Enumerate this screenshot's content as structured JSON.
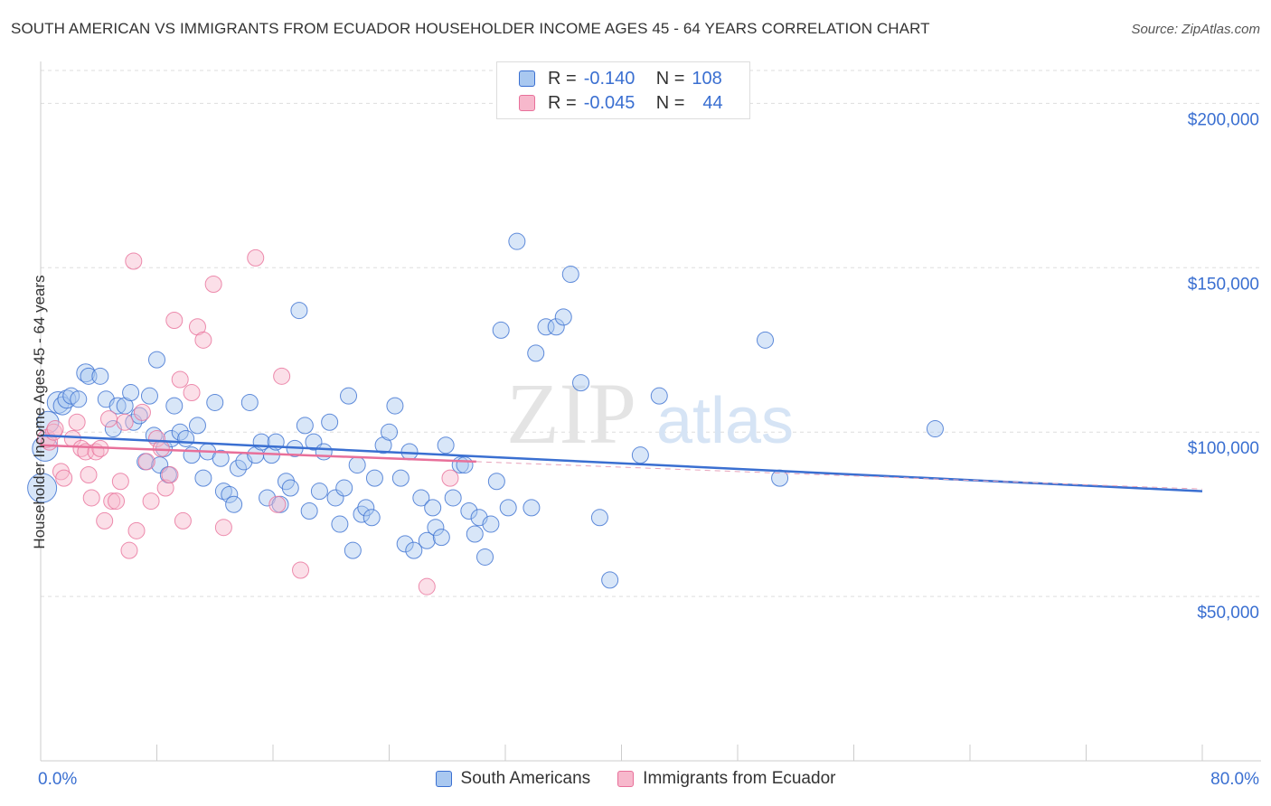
{
  "title": "SOUTH AMERICAN VS IMMIGRANTS FROM ECUADOR HOUSEHOLDER INCOME AGES 45 - 64 YEARS CORRELATION CHART",
  "source": "Source: ZipAtlas.com",
  "watermark": {
    "zip": "ZIP",
    "atlas": "atlas"
  },
  "colors": {
    "blue": "#3a6fd1",
    "blue_fill": "#a9c8f0",
    "pink": "#e8709a",
    "pink_fill": "#f7b8cc",
    "grid": "#dddddd",
    "axis_text": "#3a6fd1"
  },
  "legend": {
    "rows": [
      {
        "r_label": "R =",
        "r_value": "-0.140",
        "n_label": "N =",
        "n_value": "108",
        "color": "blue"
      },
      {
        "r_label": "R =",
        "r_value": "-0.045",
        "n_label": "N =",
        "n_value": "44",
        "color": "pink"
      }
    ]
  },
  "chart_data": {
    "type": "scatter",
    "title": "SOUTH AMERICAN VS IMMIGRANTS FROM ECUADOR HOUSEHOLDER INCOME AGES 45 - 64 YEARS CORRELATION CHART",
    "xlabel": "",
    "ylabel": "Householder Income Ages 45 - 64 years",
    "xlim": [
      0,
      80
    ],
    "ylim": [
      0,
      210000
    ],
    "x_tick_labels": [
      "0.0%",
      "80.0%"
    ],
    "y_ticks": [
      50000,
      100000,
      150000,
      200000
    ],
    "y_tick_labels": [
      "$50,000",
      "$100,000",
      "$150,000",
      "$200,000"
    ],
    "grid": true,
    "legend_position": "bottom",
    "series": [
      {
        "name": "South Americans",
        "color": "blue",
        "trend": {
          "x": [
            0,
            80
          ],
          "y": [
            99000,
            82000
          ]
        },
        "points": [
          [
            0.1,
            83000,
            16
          ],
          [
            0.3,
            95000,
            14
          ],
          [
            0.5,
            103000,
            12
          ],
          [
            1.2,
            109000,
            12
          ],
          [
            1.5,
            108000,
            10
          ],
          [
            1.8,
            110000,
            10
          ],
          [
            2.1,
            111000,
            9
          ],
          [
            2.6,
            110000,
            9
          ],
          [
            3.1,
            118000,
            10
          ],
          [
            3.3,
            117000,
            9
          ],
          [
            4.1,
            117000,
            9
          ],
          [
            4.5,
            110000,
            9
          ],
          [
            5.0,
            101000,
            9
          ],
          [
            5.3,
            108000,
            9
          ],
          [
            5.8,
            108000,
            9
          ],
          [
            6.2,
            112000,
            9
          ],
          [
            6.4,
            103000,
            9
          ],
          [
            6.8,
            105000,
            9
          ],
          [
            7.2,
            91000,
            9
          ],
          [
            7.5,
            111000,
            9
          ],
          [
            7.8,
            99000,
            9
          ],
          [
            8.0,
            122000,
            9
          ],
          [
            8.2,
            90000,
            9
          ],
          [
            8.5,
            95000,
            9
          ],
          [
            8.8,
            87000,
            9
          ],
          [
            9.0,
            98000,
            9
          ],
          [
            9.2,
            108000,
            9
          ],
          [
            9.6,
            100000,
            9
          ],
          [
            10.0,
            98000,
            9
          ],
          [
            10.4,
            93000,
            9
          ],
          [
            10.8,
            102000,
            9
          ],
          [
            11.2,
            86000,
            9
          ],
          [
            11.5,
            94000,
            9
          ],
          [
            12.0,
            109000,
            9
          ],
          [
            12.4,
            92000,
            9
          ],
          [
            12.6,
            82000,
            9
          ],
          [
            13.0,
            81000,
            9
          ],
          [
            13.3,
            78000,
            9
          ],
          [
            13.6,
            89000,
            9
          ],
          [
            14.0,
            91000,
            9
          ],
          [
            14.4,
            109000,
            9
          ],
          [
            14.8,
            93000,
            9
          ],
          [
            15.2,
            97000,
            9
          ],
          [
            15.6,
            80000,
            9
          ],
          [
            15.9,
            93000,
            9
          ],
          [
            16.2,
            97000,
            9
          ],
          [
            16.5,
            78000,
            9
          ],
          [
            16.9,
            85000,
            9
          ],
          [
            17.2,
            83000,
            9
          ],
          [
            17.5,
            95000,
            9
          ],
          [
            17.8,
            137000,
            9
          ],
          [
            18.2,
            102000,
            9
          ],
          [
            18.5,
            76000,
            9
          ],
          [
            18.8,
            97000,
            9
          ],
          [
            19.2,
            82000,
            9
          ],
          [
            19.5,
            94000,
            9
          ],
          [
            19.9,
            103000,
            9
          ],
          [
            20.3,
            80000,
            9
          ],
          [
            20.6,
            72000,
            9
          ],
          [
            20.9,
            83000,
            9
          ],
          [
            21.2,
            111000,
            9
          ],
          [
            21.5,
            64000,
            9
          ],
          [
            21.8,
            90000,
            9
          ],
          [
            22.1,
            75000,
            9
          ],
          [
            22.4,
            77000,
            9
          ],
          [
            22.8,
            74000,
            9
          ],
          [
            23.0,
            86000,
            9
          ],
          [
            23.6,
            96000,
            9
          ],
          [
            24.0,
            100000,
            9
          ],
          [
            24.4,
            108000,
            9
          ],
          [
            24.8,
            86000,
            9
          ],
          [
            25.1,
            66000,
            9
          ],
          [
            25.4,
            94000,
            9
          ],
          [
            25.7,
            64000,
            9
          ],
          [
            26.2,
            80000,
            9
          ],
          [
            26.6,
            67000,
            9
          ],
          [
            27.0,
            77000,
            9
          ],
          [
            27.2,
            71000,
            9
          ],
          [
            27.6,
            68000,
            9
          ],
          [
            27.9,
            96000,
            9
          ],
          [
            28.4,
            80000,
            9
          ],
          [
            28.9,
            90000,
            9
          ],
          [
            29.2,
            90000,
            9
          ],
          [
            29.5,
            76000,
            9
          ],
          [
            29.9,
            69000,
            9
          ],
          [
            30.2,
            74000,
            9
          ],
          [
            30.6,
            62000,
            9
          ],
          [
            31.0,
            72000,
            9
          ],
          [
            31.4,
            85000,
            9
          ],
          [
            31.7,
            131000,
            9
          ],
          [
            32.2,
            77000,
            9
          ],
          [
            32.8,
            158000,
            9
          ],
          [
            33.8,
            77000,
            9
          ],
          [
            34.1,
            124000,
            9
          ],
          [
            34.8,
            132000,
            9
          ],
          [
            35.5,
            132000,
            9
          ],
          [
            36.0,
            135000,
            9
          ],
          [
            36.5,
            148000,
            9
          ],
          [
            37.2,
            115000,
            9
          ],
          [
            38.5,
            74000,
            9
          ],
          [
            39.2,
            55000,
            9
          ],
          [
            41.3,
            93000,
            9
          ],
          [
            42.6,
            111000,
            9
          ],
          [
            49.9,
            128000,
            9
          ],
          [
            50.9,
            86000,
            9
          ],
          [
            61.6,
            101000,
            9
          ]
        ]
      },
      {
        "name": "Immigrants from Ecuador",
        "color": "pink",
        "trend": {
          "x": [
            0,
            30
          ],
          "y": [
            96000,
            91000
          ]
        },
        "points": [
          [
            0.4,
            98000,
            10
          ],
          [
            0.6,
            97000,
            9
          ],
          [
            0.9,
            100000,
            9
          ],
          [
            1.0,
            101000,
            9
          ],
          [
            1.4,
            88000,
            9
          ],
          [
            1.6,
            86000,
            9
          ],
          [
            2.2,
            98000,
            9
          ],
          [
            2.5,
            103000,
            9
          ],
          [
            2.8,
            95000,
            9
          ],
          [
            3.1,
            94000,
            9
          ],
          [
            3.3,
            87000,
            9
          ],
          [
            3.5,
            80000,
            9
          ],
          [
            3.8,
            94000,
            9
          ],
          [
            4.1,
            95000,
            9
          ],
          [
            4.4,
            73000,
            9
          ],
          [
            4.7,
            104000,
            9
          ],
          [
            4.9,
            79000,
            9
          ],
          [
            5.2,
            79000,
            9
          ],
          [
            5.5,
            85000,
            9
          ],
          [
            5.8,
            103000,
            9
          ],
          [
            6.1,
            64000,
            9
          ],
          [
            6.4,
            152000,
            9
          ],
          [
            6.6,
            70000,
            9
          ],
          [
            7.0,
            106000,
            9
          ],
          [
            7.3,
            91000,
            9
          ],
          [
            7.6,
            79000,
            9
          ],
          [
            8.0,
            98000,
            9
          ],
          [
            8.3,
            95000,
            9
          ],
          [
            8.6,
            83000,
            9
          ],
          [
            8.9,
            87000,
            9
          ],
          [
            9.2,
            134000,
            9
          ],
          [
            9.6,
            116000,
            9
          ],
          [
            9.8,
            73000,
            9
          ],
          [
            10.4,
            112000,
            9
          ],
          [
            10.8,
            132000,
            9
          ],
          [
            11.2,
            128000,
            9
          ],
          [
            11.9,
            145000,
            9
          ],
          [
            12.6,
            71000,
            9
          ],
          [
            14.8,
            153000,
            9
          ],
          [
            16.3,
            78000,
            9
          ],
          [
            16.6,
            117000,
            9
          ],
          [
            17.9,
            58000,
            9
          ],
          [
            26.6,
            53000,
            9
          ],
          [
            28.2,
            86000,
            9
          ]
        ]
      }
    ]
  }
}
